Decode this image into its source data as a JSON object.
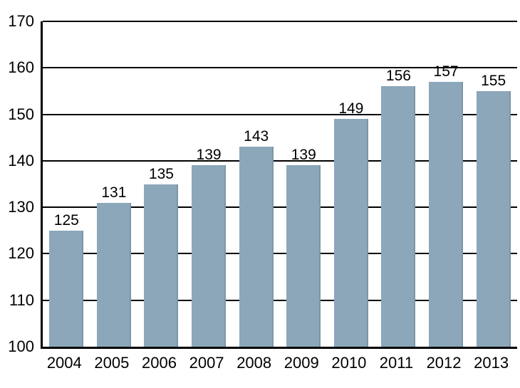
{
  "chart_data": {
    "type": "bar",
    "categories": [
      "2004",
      "2005",
      "2006",
      "2007",
      "2008",
      "2009",
      "2010",
      "2011",
      "2012",
      "2013"
    ],
    "values": [
      125,
      131,
      135,
      139,
      143,
      139,
      149,
      156,
      157,
      155
    ],
    "title": "",
    "xlabel": "",
    "ylabel": "",
    "ylim": [
      100,
      170
    ],
    "ytick_step": 10,
    "yticks": [
      100,
      110,
      120,
      130,
      140,
      150,
      160,
      170
    ],
    "bar_color": "#8CA7BA",
    "grid": true,
    "data_labels": true,
    "legend": "none"
  }
}
